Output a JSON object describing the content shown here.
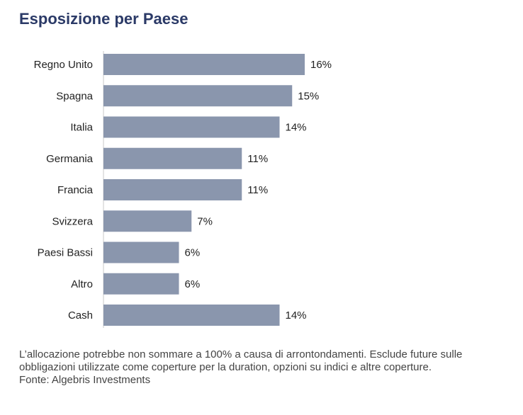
{
  "title": "Esposizione per Paese",
  "chart_data": {
    "type": "bar",
    "orientation": "horizontal",
    "categories": [
      "Regno Unito",
      "Spagna",
      "Italia",
      "Germania",
      "Francia",
      "Svizzera",
      "Paesi Bassi",
      "Altro",
      "Cash"
    ],
    "values": [
      16,
      15,
      14,
      11,
      11,
      7,
      6,
      6,
      14
    ],
    "value_labels": [
      "16%",
      "15%",
      "14%",
      "11%",
      "11%",
      "7%",
      "6%",
      "6%",
      "14%"
    ],
    "unit": "%",
    "bar_color": "#8a96ad",
    "grid": false,
    "legend": "none"
  },
  "footnote": {
    "text": "L’allocazione potrebbe non sommare a 100% a causa di arrontondamenti. Esclude future sulle obbligazioni utilizzate come coperture per la duration, opzioni su indici e altre coperture.",
    "source": "Fonte: Algebris Investments"
  }
}
